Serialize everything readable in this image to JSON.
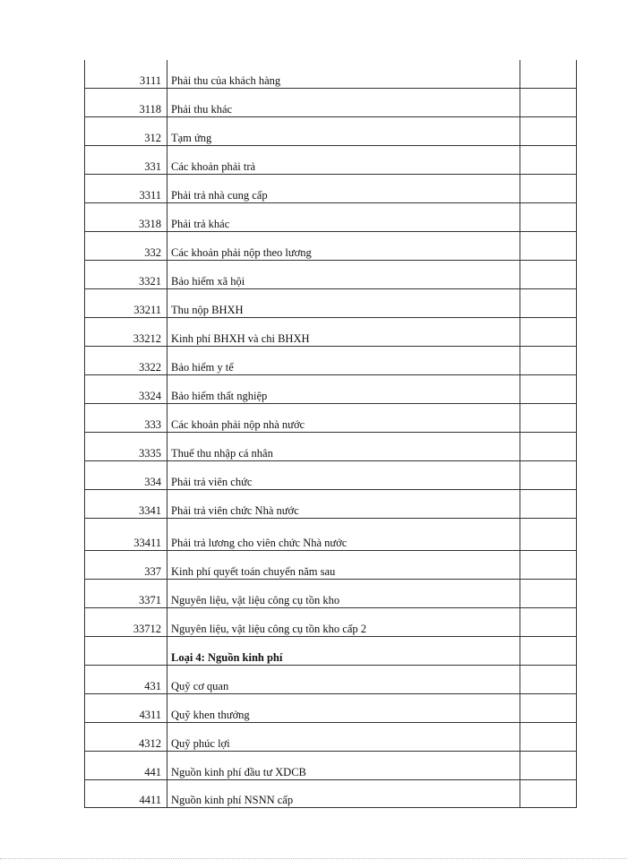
{
  "table": {
    "rows": [
      {
        "code": "3111",
        "description": "Phải thu của khách hàng"
      },
      {
        "code": "3118",
        "description": "Phải thu khác"
      },
      {
        "code": "312",
        "description": "Tạm ứng"
      },
      {
        "code": "331",
        "description": "Các khoản phải trả"
      },
      {
        "code": "3311",
        "description": "Phải trả nhà cung cấp"
      },
      {
        "code": "3318",
        "description": "Phải trả khác"
      },
      {
        "code": "332",
        "description": "Các khoản phải nộp theo lương"
      },
      {
        "code": "3321",
        "description": "Bảo hiểm xã hội"
      },
      {
        "code": "33211",
        "description": "Thu nộp BHXH"
      },
      {
        "code": "33212",
        "description": "Kinh phí BHXH và chi BHXH"
      },
      {
        "code": "3322",
        "description": "Bảo hiểm y tế"
      },
      {
        "code": "3324",
        "description": "Bảo hiểm thất nghiệp"
      },
      {
        "code": "333",
        "description": "Các khoản phải nộp nhà nước"
      },
      {
        "code": "3335",
        "description": "Thuế thu nhập cá nhân"
      },
      {
        "code": "334",
        "description": "Phải trả viên chức"
      },
      {
        "code": "3341",
        "description": "Phải trả viên chức Nhà nước"
      },
      {
        "code": "33411",
        "description": "Phải trả lương cho viên chức Nhà nước"
      },
      {
        "code": "337",
        "description": "Kinh phí quyết toán chuyển năm sau"
      },
      {
        "code": "3371",
        "description": "Nguyên liệu, vật liệu công cụ tồn kho"
      },
      {
        "code": "33712",
        "description": "Nguyên liệu, vật liệu công cụ tồn kho cấp 2"
      },
      {
        "code": "",
        "description": "Loại 4: Nguồn kinh phí"
      },
      {
        "code": "431",
        "description": "Quỹ cơ quan"
      },
      {
        "code": "4311",
        "description": "Quỹ khen thưởng"
      },
      {
        "code": "4312",
        "description": "Quỹ phúc lợi"
      },
      {
        "code": "441",
        "description": "Nguồn kinh phí đầu tư XDCB"
      },
      {
        "code": "4411",
        "description": "Nguồn kinh phí NSNN cấp"
      }
    ]
  }
}
